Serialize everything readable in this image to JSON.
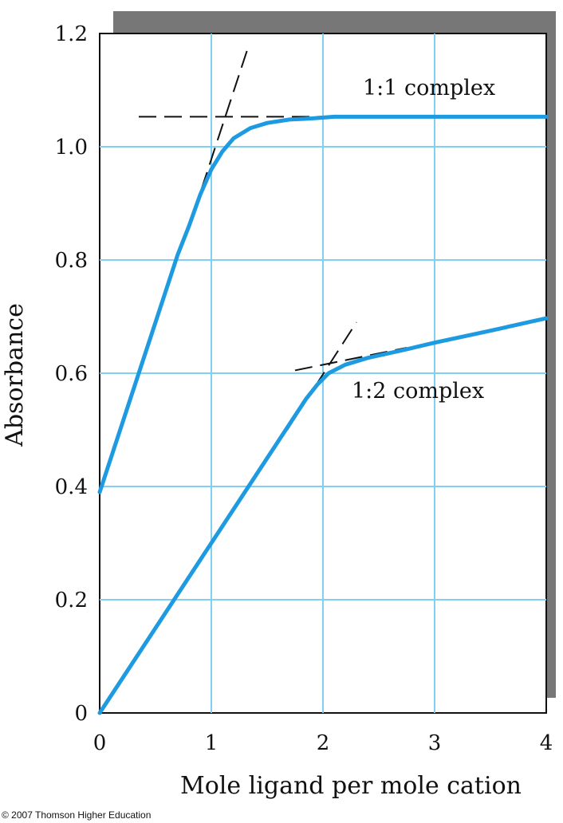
{
  "chart_data": {
    "type": "line",
    "xlabel": "Mole ligand per mole cation",
    "ylabel": "Absorbance",
    "xlim": [
      0,
      4
    ],
    "ylim": [
      0,
      1.2
    ],
    "x_ticks": [
      0,
      1,
      2,
      3,
      4
    ],
    "x_tick_labels": [
      "0",
      "1",
      "2",
      "3",
      "4"
    ],
    "y_ticks": [
      0,
      0.2,
      0.4,
      0.6,
      0.8,
      1.0,
      1.2
    ],
    "y_tick_labels": [
      "0",
      "0.2",
      "0.4",
      "0.6",
      "0.8",
      "1.0",
      "1.2"
    ],
    "grid": true,
    "series": [
      {
        "name": "1:1 complex",
        "color": "#1e9be0",
        "x": [
          0,
          0.25,
          0.5,
          0.7,
          0.8,
          0.9,
          1.0,
          1.1,
          1.2,
          1.35,
          1.5,
          1.7,
          1.9,
          2.1,
          2.5,
          3.0,
          3.5,
          4.0
        ],
        "y": [
          0.39,
          0.54,
          0.69,
          0.81,
          0.86,
          0.915,
          0.96,
          0.992,
          1.015,
          1.033,
          1.042,
          1.048,
          1.05,
          1.053,
          1.053,
          1.053,
          1.053,
          1.053
        ]
      },
      {
        "name": "1:2 complex",
        "color": "#1e9be0",
        "x": [
          0,
          0.5,
          1.0,
          1.5,
          1.7,
          1.85,
          1.95,
          2.05,
          2.2,
          2.4,
          2.7,
          3.0,
          3.5,
          4.0
        ],
        "y": [
          0,
          0.15,
          0.3,
          0.45,
          0.51,
          0.555,
          0.58,
          0.6,
          0.615,
          0.627,
          0.64,
          0.654,
          0.675,
          0.697
        ]
      }
    ],
    "tangent_lines": [
      {
        "x": [
          0.77,
          1.32
        ],
        "y": [
          0.84,
          1.17
        ]
      },
      {
        "x": [
          0.35,
          2.1
        ],
        "y": [
          1.053,
          1.053
        ]
      },
      {
        "x": [
          1.68,
          2.3
        ],
        "y": [
          0.5,
          0.69
        ]
      },
      {
        "x": [
          1.75,
          2.75
        ],
        "y": [
          0.605,
          0.645
        ]
      }
    ],
    "annotations": [
      "1:1 complex",
      "1:2 complex"
    ],
    "copyright": "© 2007 Thomson Higher Education"
  }
}
